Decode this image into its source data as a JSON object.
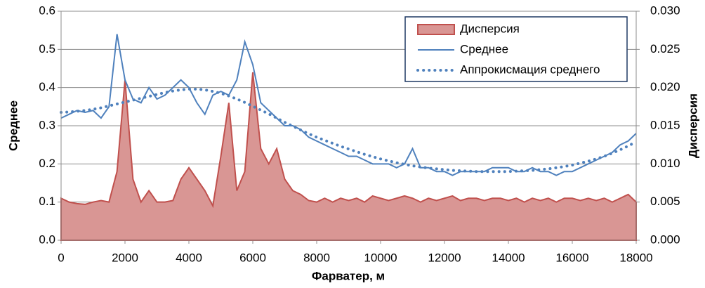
{
  "chart_data": {
    "type": "line",
    "xlabel": "Фарватер, м",
    "ylabel": "Среднее",
    "y2label": "Дисперсия",
    "x": [
      0,
      250,
      500,
      750,
      1000,
      1250,
      1500,
      1750,
      2000,
      2250,
      2500,
      2750,
      3000,
      3250,
      3500,
      3750,
      4000,
      4250,
      4500,
      4750,
      5000,
      5250,
      5500,
      5750,
      6000,
      6250,
      6500,
      6750,
      7000,
      7250,
      7500,
      7750,
      8000,
      8250,
      8500,
      8750,
      9000,
      9250,
      9500,
      9750,
      10000,
      10250,
      10500,
      10750,
      11000,
      11250,
      11500,
      11750,
      12000,
      12250,
      12500,
      12750,
      13000,
      13250,
      13500,
      13750,
      14000,
      14250,
      14500,
      14750,
      15000,
      15250,
      15500,
      15750,
      16000,
      16250,
      16500,
      16750,
      17000,
      17250,
      17500,
      17750,
      18000
    ],
    "xlim": [
      0,
      18000
    ],
    "xticks": [
      0,
      2000,
      4000,
      6000,
      8000,
      10000,
      12000,
      14000,
      16000,
      18000
    ],
    "ylim": [
      0,
      0.6
    ],
    "yticks": [
      {
        "value": 0,
        "label": "0.0"
      },
      0.1,
      0.2,
      0.3,
      0.4,
      0.5,
      0.6
    ],
    "y2lim": [
      0,
      0.03
    ],
    "y2ticks": [
      {
        "value": 0,
        "label": "0.000"
      },
      0.005,
      {
        "value": 0.01,
        "label": "0.010"
      },
      0.015,
      {
        "value": 0.02,
        "label": "0.020"
      },
      0.025,
      {
        "value": 0.03,
        "label": "0.030"
      }
    ],
    "grid": true,
    "legend": "upper right",
    "series": [
      {
        "name": "Дисперсия",
        "type": "area",
        "axis": "y2",
        "color": "#c0504d",
        "fill": "#d99694",
        "values": [
          0.0055,
          0.005,
          0.0048,
          0.0047,
          0.005,
          0.0052,
          0.005,
          0.009,
          0.021,
          0.008,
          0.005,
          0.0065,
          0.005,
          0.005,
          0.0052,
          0.008,
          0.0095,
          0.008,
          0.0065,
          0.0045,
          0.011,
          0.018,
          0.0065,
          0.009,
          0.022,
          0.012,
          0.01,
          0.012,
          0.008,
          0.0065,
          0.006,
          0.0052,
          0.005,
          0.0055,
          0.005,
          0.0055,
          0.0052,
          0.0055,
          0.005,
          0.0058,
          0.0055,
          0.0052,
          0.0055,
          0.0058,
          0.0055,
          0.005,
          0.0055,
          0.0052,
          0.0055,
          0.0058,
          0.0052,
          0.0055,
          0.0055,
          0.0052,
          0.0055,
          0.0055,
          0.0052,
          0.0055,
          0.005,
          0.0055,
          0.0052,
          0.0055,
          0.005,
          0.0055,
          0.0055,
          0.0052,
          0.0055,
          0.0052,
          0.0055,
          0.005,
          0.0055,
          0.006,
          0.005
        ]
      },
      {
        "name": "Среднее",
        "type": "line",
        "color": "#4f81bd",
        "values": [
          0.32,
          0.33,
          0.34,
          0.335,
          0.34,
          0.32,
          0.35,
          0.54,
          0.42,
          0.37,
          0.36,
          0.4,
          0.37,
          0.38,
          0.4,
          0.42,
          0.4,
          0.36,
          0.33,
          0.38,
          0.39,
          0.38,
          0.42,
          0.52,
          0.46,
          0.36,
          0.34,
          0.32,
          0.3,
          0.3,
          0.29,
          0.27,
          0.26,
          0.25,
          0.24,
          0.23,
          0.22,
          0.22,
          0.21,
          0.2,
          0.2,
          0.2,
          0.19,
          0.2,
          0.24,
          0.19,
          0.19,
          0.18,
          0.18,
          0.17,
          0.18,
          0.18,
          0.18,
          0.18,
          0.19,
          0.19,
          0.19,
          0.18,
          0.18,
          0.19,
          0.18,
          0.18,
          0.17,
          0.18,
          0.18,
          0.19,
          0.2,
          0.21,
          0.22,
          0.23,
          0.25,
          0.26,
          0.28
        ]
      },
      {
        "name": "Аппрокисмация среднего",
        "type": "dotted",
        "color": "#4f81bd",
        "values": [
          0.335,
          0.336,
          0.338,
          0.34,
          0.343,
          0.347,
          0.352,
          0.357,
          0.362,
          0.367,
          0.372,
          0.377,
          0.382,
          0.387,
          0.391,
          0.394,
          0.396,
          0.396,
          0.394,
          0.39,
          0.385,
          0.378,
          0.37,
          0.361,
          0.351,
          0.341,
          0.331,
          0.32,
          0.309,
          0.299,
          0.289,
          0.279,
          0.27,
          0.262,
          0.254,
          0.246,
          0.239,
          0.232,
          0.225,
          0.219,
          0.213,
          0.208,
          0.203,
          0.199,
          0.195,
          0.192,
          0.189,
          0.187,
          0.185,
          0.183,
          0.182,
          0.181,
          0.18,
          0.18,
          0.18,
          0.18,
          0.18,
          0.181,
          0.182,
          0.183,
          0.185,
          0.187,
          0.19,
          0.193,
          0.197,
          0.202,
          0.207,
          0.213,
          0.22,
          0.228,
          0.237,
          0.247,
          0.258
        ]
      }
    ]
  }
}
